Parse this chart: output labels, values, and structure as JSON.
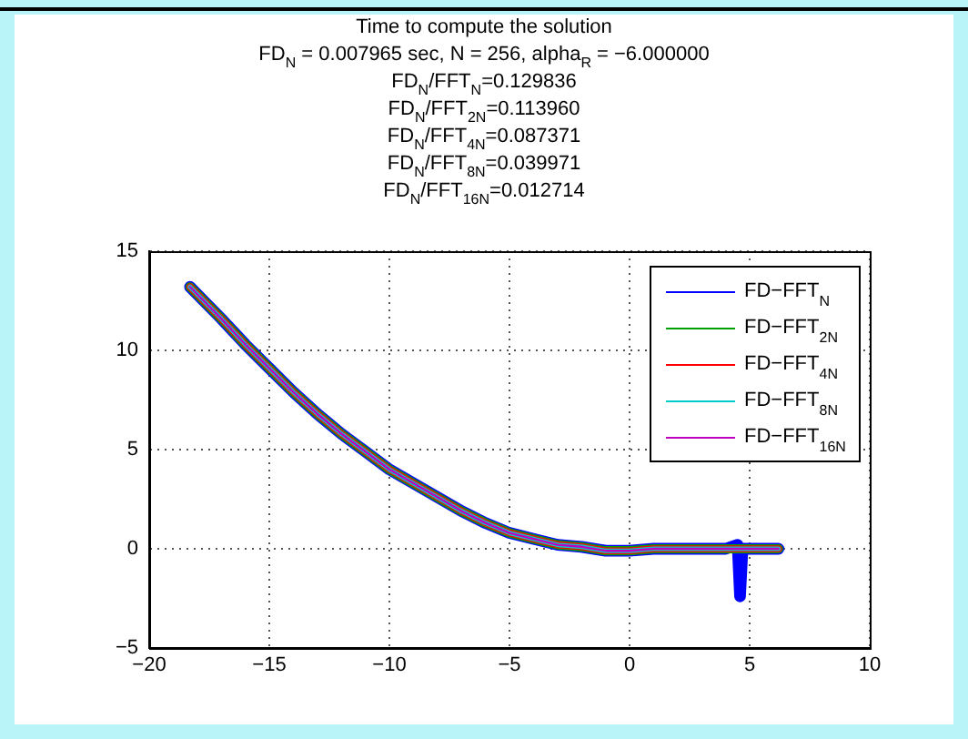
{
  "chart_data": {
    "type": "line",
    "title": "Time to compute the solution",
    "subtitle": "FD$_{N}$ = 0.007965 sec, N = 256, alpha$_{R}$ = −6.000000",
    "annotations": [
      "FD$_{N}$/FFT$_{N}$=0.129836",
      "FD$_{N}$/FFT$_{2N}$=0.113960",
      "FD$_{N}$/FFT$_{4N}$=0.087371",
      "FD$_{N}$/FFT$_{8N}$=0.039971",
      "FD$_{N}$/FFT$_{16N}$=0.012714"
    ],
    "x": [
      -18.3,
      -17,
      -16,
      -15,
      -14,
      -13,
      -12,
      -11,
      -10,
      -9,
      -8,
      -7,
      -6,
      -5,
      -4,
      -3,
      -2,
      -1,
      0,
      1,
      2,
      3,
      4,
      4.5,
      4.6,
      4.7,
      5,
      6,
      6.2
    ],
    "series": [
      {
        "name": "FD−FFT$_{N}$",
        "color": "#0000ff",
        "values": [
          13.2,
          11.6,
          10.3,
          9.1,
          7.9,
          6.8,
          5.8,
          4.9,
          4.0,
          3.3,
          2.6,
          1.9,
          1.3,
          0.8,
          0.5,
          0.2,
          0.1,
          -0.1,
          -0.1,
          0,
          0,
          0,
          0,
          0.2,
          -2.4,
          0,
          0,
          0,
          0
        ]
      },
      {
        "name": "FD−FFT$_{2N}$",
        "color": "#00a000",
        "values": [
          13.2,
          11.6,
          10.3,
          9.1,
          7.9,
          6.8,
          5.8,
          4.9,
          4.0,
          3.3,
          2.6,
          1.9,
          1.3,
          0.8,
          0.5,
          0.2,
          0.1,
          -0.1,
          -0.1,
          0,
          0,
          0,
          0,
          0,
          0,
          0,
          0,
          0,
          0
        ]
      },
      {
        "name": "FD−FFT$_{4N}$",
        "color": "#ff0000",
        "values": [
          13.2,
          11.6,
          10.3,
          9.1,
          7.9,
          6.8,
          5.8,
          4.9,
          4.0,
          3.3,
          2.6,
          1.9,
          1.3,
          0.8,
          0.5,
          0.2,
          0.1,
          -0.1,
          -0.1,
          0,
          0,
          0,
          0,
          0,
          0,
          0,
          0,
          0,
          0
        ]
      },
      {
        "name": "FD−FFT$_{8N}$",
        "color": "#00cccc",
        "values": [
          13.2,
          11.6,
          10.3,
          9.1,
          7.9,
          6.8,
          5.8,
          4.9,
          4.0,
          3.3,
          2.6,
          1.9,
          1.3,
          0.8,
          0.5,
          0.2,
          0.1,
          -0.1,
          -0.1,
          0,
          0,
          0,
          0,
          0,
          0,
          0,
          0,
          0,
          0
        ]
      },
      {
        "name": "FD−FFT$_{16N}$",
        "color": "#bf00bf",
        "values": [
          13.2,
          11.6,
          10.3,
          9.1,
          7.9,
          6.8,
          5.8,
          4.9,
          4.0,
          3.3,
          2.6,
          1.9,
          1.3,
          0.8,
          0.5,
          0.2,
          0.1,
          -0.1,
          -0.1,
          0,
          0,
          0,
          0,
          0,
          0,
          0,
          0,
          0,
          0
        ]
      }
    ],
    "xlim": [
      -20,
      10
    ],
    "xticks": [
      -20,
      -15,
      -10,
      -5,
      0,
      5,
      10
    ],
    "ylim": [
      -5,
      15
    ],
    "yticks": [
      -5,
      0,
      5,
      10,
      15
    ],
    "grid": true,
    "legend": "top right",
    "line_style": "solid",
    "marker": "none"
  }
}
